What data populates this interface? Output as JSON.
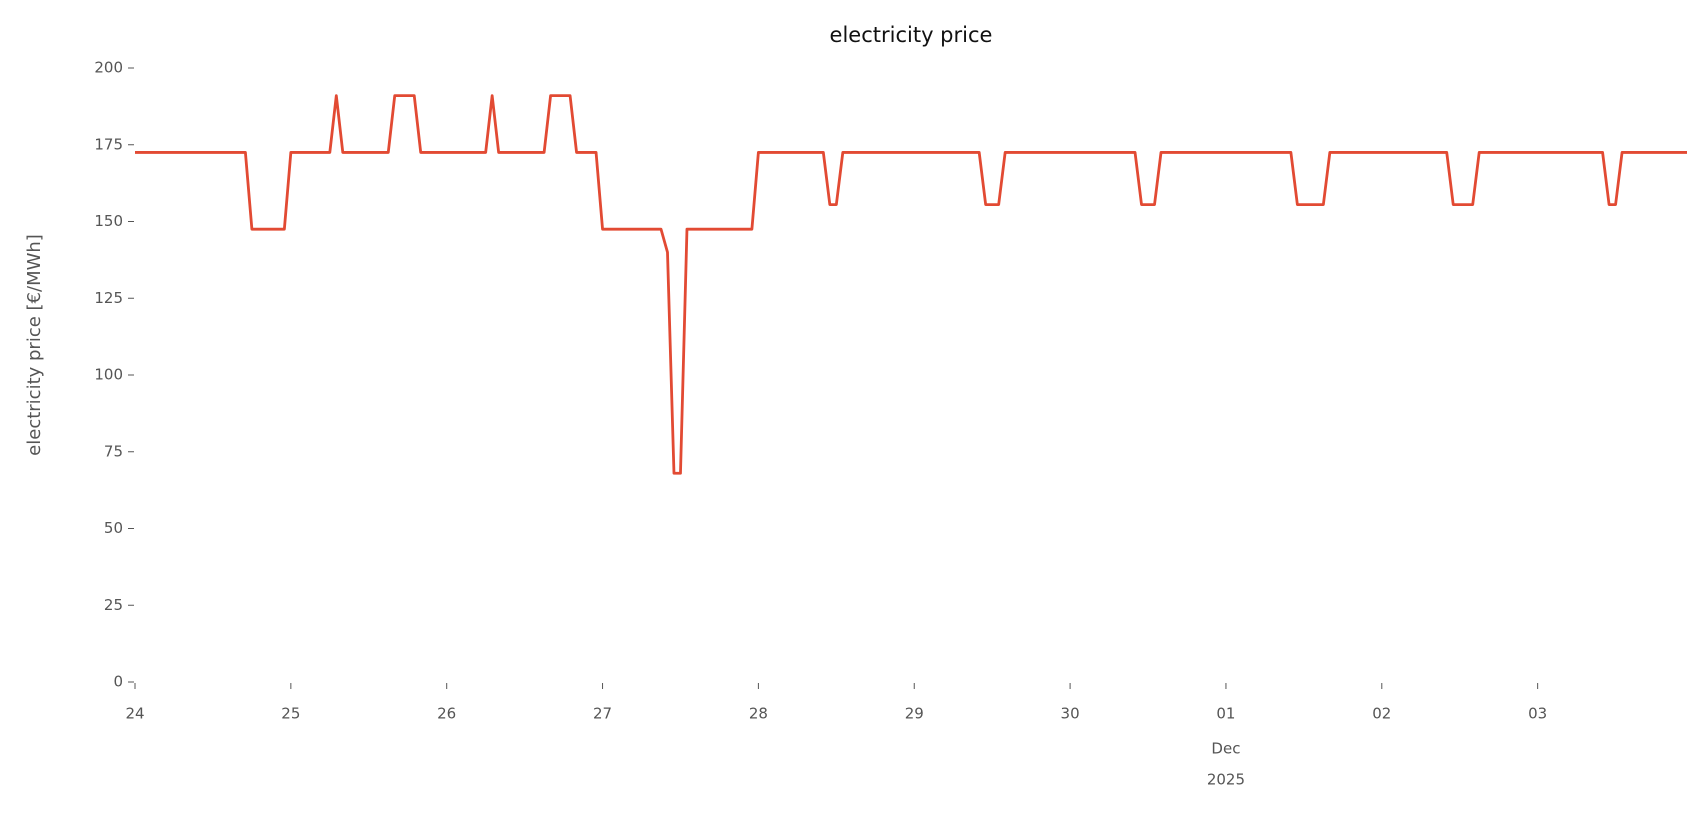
{
  "chart_data": {
    "type": "line",
    "title": "electricity price",
    "y_label": "electricity price [€/MWh]",
    "annotations": [
      "Dec",
      "2025"
    ],
    "xlim": [
      0,
      239
    ],
    "xticks": [
      {
        "value": 0,
        "label": "24"
      },
      {
        "value": 24,
        "label": "25"
      },
      {
        "value": 48,
        "label": "26"
      },
      {
        "value": 72,
        "label": "27"
      },
      {
        "value": 96,
        "label": "28"
      },
      {
        "value": 120,
        "label": "29"
      },
      {
        "value": 144,
        "label": "30"
      },
      {
        "value": 168,
        "label": "01"
      },
      {
        "value": 192,
        "label": "02"
      },
      {
        "value": 216,
        "label": "03"
      }
    ],
    "ylim": [
      0,
      200
    ],
    "yticks": [
      0,
      25,
      50,
      75,
      100,
      125,
      150,
      175,
      200
    ],
    "grid": false,
    "series": [
      {
        "name": "electricity price",
        "color": "#e24a33",
        "x": [
          0,
          17,
          18,
          23,
          24,
          30,
          31,
          32,
          39,
          40,
          43,
          44,
          54,
          55,
          56,
          63,
          64,
          67,
          68,
          71,
          72,
          81,
          82,
          83,
          84,
          85,
          95,
          96,
          106,
          107,
          108,
          109,
          130,
          131,
          133,
          134,
          154,
          155,
          157,
          158,
          178,
          179,
          183,
          184,
          202,
          203,
          206,
          207,
          226,
          227,
          228,
          229,
          239
        ],
        "values": [
          172.5,
          172.5,
          147.5,
          147.5,
          172.5,
          172.5,
          191,
          172.5,
          172.5,
          191,
          191,
          172.5,
          172.5,
          191,
          172.5,
          172.5,
          191,
          191,
          172.5,
          172.5,
          147.5,
          147.5,
          140,
          68,
          68,
          147.5,
          147.5,
          172.5,
          172.5,
          155.5,
          155.5,
          172.5,
          172.5,
          155.5,
          155.5,
          172.5,
          172.5,
          155.5,
          155.5,
          172.5,
          172.5,
          155.5,
          155.5,
          172.5,
          172.5,
          155.5,
          155.5,
          172.5,
          172.5,
          155.5,
          155.5,
          172.5,
          172.5
        ]
      }
    ]
  }
}
